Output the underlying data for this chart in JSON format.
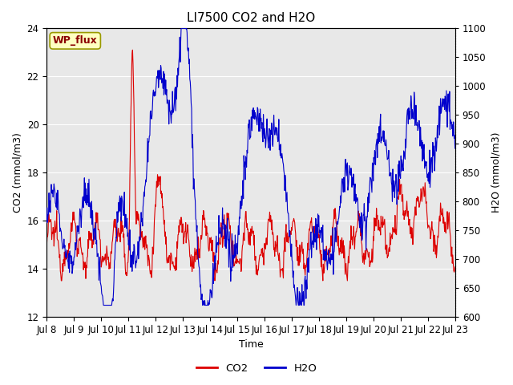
{
  "title": "LI7500 CO2 and H2O",
  "xlabel": "Time",
  "ylabel_left": "CO2 (mmol/m3)",
  "ylabel_right": "H2O (mmol/m3)",
  "site_label": "WP_flux",
  "ylim_left": [
    12,
    24
  ],
  "ylim_right": [
    600,
    1100
  ],
  "yticks_left": [
    12,
    14,
    16,
    18,
    20,
    22,
    24
  ],
  "yticks_right": [
    600,
    650,
    700,
    750,
    800,
    850,
    900,
    950,
    1000,
    1050,
    1100
  ],
  "xtick_labels": [
    "Jul 8",
    "Jul 9",
    "Jul 10",
    "Jul 11",
    "Jul 12",
    "Jul 13",
    "Jul 14",
    "Jul 15",
    "Jul 16",
    "Jul 17",
    "Jul 18",
    "Jul 19",
    "Jul 20",
    "Jul 21",
    "Jul 22",
    "Jul 23"
  ],
  "co2_color": "#dd0000",
  "h2o_color": "#0000cc",
  "plot_bg_color": "#e8e8e8",
  "fig_bg_color": "#ffffff",
  "legend_co2": "CO2",
  "legend_h2o": "H2O",
  "title_fontsize": 11,
  "label_fontsize": 9,
  "tick_fontsize": 8.5,
  "n_days": 15,
  "pts_per_day": 60,
  "seed": 12345
}
